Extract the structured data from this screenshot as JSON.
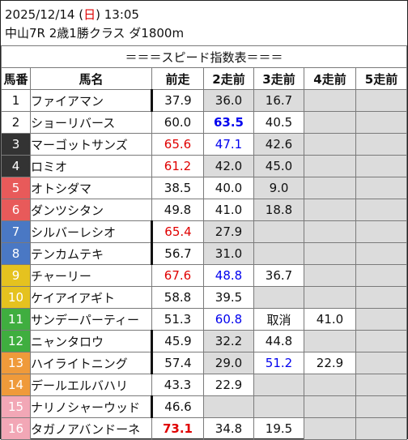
{
  "header": {
    "date": "2025/12/14",
    "day_open": " (",
    "day": "日",
    "day_close": ")",
    "time": " 13:05",
    "race": "中山7R 2歳1勝クラス ダ1800m"
  },
  "table": {
    "title": "＝＝＝スピード指数表＝＝＝",
    "columns": [
      "馬番",
      "馬名",
      "前走",
      "2走前",
      "3走前",
      "4走前",
      "5走前"
    ],
    "rows": [
      {
        "num": "1",
        "name": "ファイアマン",
        "bg": "#ffffff",
        "fg": "#111111",
        "thick": true,
        "cells": [
          {
            "v": "37.9",
            "c": ""
          },
          {
            "v": "36.0",
            "c": "",
            "g": true
          },
          {
            "v": "16.7",
            "c": "",
            "g": true
          },
          {
            "v": "",
            "g": true
          },
          {
            "v": "",
            "g": true
          }
        ]
      },
      {
        "num": "2",
        "name": "ショーリバース",
        "bg": "#ffffff",
        "fg": "#111111",
        "thick": false,
        "cells": [
          {
            "v": "60.0",
            "c": ""
          },
          {
            "v": "63.5",
            "c": "blue bold"
          },
          {
            "v": "40.5",
            "c": ""
          },
          {
            "v": "",
            "g": true
          },
          {
            "v": "",
            "g": true
          }
        ]
      },
      {
        "num": "3",
        "name": "マーゴットサンズ",
        "bg": "#333333",
        "fg": "#ffffff",
        "thick": false,
        "cells": [
          {
            "v": "65.6",
            "c": "red"
          },
          {
            "v": "47.1",
            "c": "blue"
          },
          {
            "v": "42.6",
            "c": "",
            "g": true
          },
          {
            "v": "",
            "g": true
          },
          {
            "v": "",
            "g": true
          }
        ]
      },
      {
        "num": "4",
        "name": "ロミオ",
        "bg": "#333333",
        "fg": "#ffffff",
        "thick": false,
        "cells": [
          {
            "v": "61.2",
            "c": "red"
          },
          {
            "v": "42.0",
            "c": "",
            "g": true
          },
          {
            "v": "45.0",
            "c": "",
            "g": true
          },
          {
            "v": "",
            "g": true
          },
          {
            "v": "",
            "g": true
          }
        ]
      },
      {
        "num": "5",
        "name": "オトシダマ",
        "bg": "#e85a5a",
        "fg": "#ffffff",
        "thick": false,
        "cells": [
          {
            "v": "38.5",
            "c": ""
          },
          {
            "v": "40.0",
            "c": ""
          },
          {
            "v": "9.0",
            "c": "",
            "g": true
          },
          {
            "v": "",
            "g": true
          },
          {
            "v": "",
            "g": true
          }
        ]
      },
      {
        "num": "6",
        "name": "ダンツシタン",
        "bg": "#e85a5a",
        "fg": "#ffffff",
        "thick": false,
        "cells": [
          {
            "v": "49.8",
            "c": ""
          },
          {
            "v": "41.0",
            "c": ""
          },
          {
            "v": "18.8",
            "c": "",
            "g": true
          },
          {
            "v": "",
            "g": true
          },
          {
            "v": "",
            "g": true
          }
        ]
      },
      {
        "num": "7",
        "name": "シルバーレシオ",
        "bg": "#4a78c4",
        "fg": "#ffffff",
        "thick": true,
        "cells": [
          {
            "v": "65.4",
            "c": "red"
          },
          {
            "v": "27.9",
            "c": "",
            "g": true
          },
          {
            "v": "",
            "g": true
          },
          {
            "v": "",
            "g": true
          },
          {
            "v": "",
            "g": true
          }
        ]
      },
      {
        "num": "8",
        "name": "テンカムテキ",
        "bg": "#4a78c4",
        "fg": "#ffffff",
        "thick": true,
        "cells": [
          {
            "v": "56.7",
            "c": ""
          },
          {
            "v": "31.0",
            "c": "",
            "g": true
          },
          {
            "v": "",
            "g": true
          },
          {
            "v": "",
            "g": true
          },
          {
            "v": "",
            "g": true
          }
        ]
      },
      {
        "num": "9",
        "name": "チャーリー",
        "bg": "#e5c21f",
        "fg": "#ffffff",
        "thick": false,
        "cells": [
          {
            "v": "67.6",
            "c": "red"
          },
          {
            "v": "48.8",
            "c": "blue"
          },
          {
            "v": "36.7",
            "c": ""
          },
          {
            "v": "",
            "g": true
          },
          {
            "v": "",
            "g": true
          }
        ]
      },
      {
        "num": "10",
        "name": "ケイアイアギト",
        "bg": "#e5c21f",
        "fg": "#ffffff",
        "thick": false,
        "cells": [
          {
            "v": "58.8",
            "c": ""
          },
          {
            "v": "39.5",
            "c": ""
          },
          {
            "v": "",
            "g": true
          },
          {
            "v": "",
            "g": true
          },
          {
            "v": "",
            "g": true
          }
        ]
      },
      {
        "num": "11",
        "name": "サンデーパーティー",
        "bg": "#3fae3f",
        "fg": "#ffffff",
        "thick": false,
        "cells": [
          {
            "v": "51.3",
            "c": ""
          },
          {
            "v": "60.8",
            "c": "blue"
          },
          {
            "v": "取消",
            "c": ""
          },
          {
            "v": "41.0",
            "c": ""
          },
          {
            "v": "",
            "g": true
          }
        ]
      },
      {
        "num": "12",
        "name": "ニャンタロウ",
        "bg": "#3fae3f",
        "fg": "#ffffff",
        "thick": true,
        "cells": [
          {
            "v": "45.9",
            "c": ""
          },
          {
            "v": "32.2",
            "c": "",
            "g": true
          },
          {
            "v": "44.8",
            "c": ""
          },
          {
            "v": "",
            "g": true
          },
          {
            "v": "",
            "g": true
          }
        ]
      },
      {
        "num": "13",
        "name": "ハイライトニング",
        "bg": "#ef9a3a",
        "fg": "#ffffff",
        "thick": true,
        "cells": [
          {
            "v": "57.4",
            "c": ""
          },
          {
            "v": "29.0",
            "c": "",
            "g": true
          },
          {
            "v": "51.2",
            "c": "blue"
          },
          {
            "v": "22.9",
            "c": ""
          },
          {
            "v": "",
            "g": true
          }
        ]
      },
      {
        "num": "14",
        "name": "デールエルバハリ",
        "bg": "#ef9a3a",
        "fg": "#ffffff",
        "thick": false,
        "cells": [
          {
            "v": "43.3",
            "c": ""
          },
          {
            "v": "22.9",
            "c": ""
          },
          {
            "v": "",
            "g": true
          },
          {
            "v": "",
            "g": true
          },
          {
            "v": "",
            "g": true
          }
        ]
      },
      {
        "num": "15",
        "name": "ナリノシャーウッド",
        "bg": "#f2a7b6",
        "fg": "#ffffff",
        "thick": true,
        "cells": [
          {
            "v": "46.6",
            "c": ""
          },
          {
            "v": "",
            "g": true
          },
          {
            "v": "",
            "g": true
          },
          {
            "v": "",
            "g": true
          },
          {
            "v": "",
            "g": true
          }
        ]
      },
      {
        "num": "16",
        "name": "タガノアバンドーネ",
        "bg": "#f2a7b6",
        "fg": "#ffffff",
        "thick": false,
        "cells": [
          {
            "v": "73.1",
            "c": "red bold"
          },
          {
            "v": "34.8",
            "c": ""
          },
          {
            "v": "19.5",
            "c": ""
          },
          {
            "v": "",
            "g": true
          },
          {
            "v": "",
            "g": true
          }
        ]
      }
    ]
  }
}
